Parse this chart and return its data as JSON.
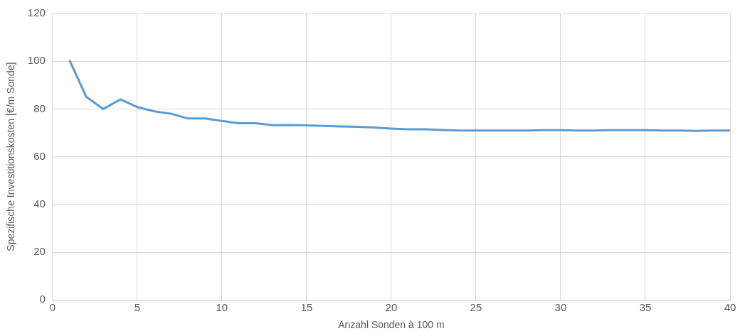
{
  "chart_data": {
    "type": "line",
    "xlabel": "Anzahl Sonden à 100 m",
    "ylabel": "Spezifische Investitionskosten [€/m Sonde]",
    "x": [
      1,
      2,
      3,
      4,
      5,
      6,
      7,
      8,
      9,
      10,
      11,
      12,
      13,
      14,
      15,
      16,
      17,
      18,
      19,
      20,
      21,
      22,
      23,
      24,
      25,
      26,
      27,
      28,
      29,
      30,
      31,
      32,
      33,
      34,
      35,
      36,
      37,
      38,
      39,
      40
    ],
    "series": [
      {
        "color": "#5b9bd5",
        "values": [
          100.5,
          85,
          80,
          84,
          80.8,
          79,
          78,
          76,
          76,
          75,
          74,
          74,
          73.2,
          73.3,
          73.1,
          72.9,
          72.7,
          72.5,
          72.2,
          71.8,
          71.5,
          71.5,
          71.2,
          71,
          71,
          71,
          71,
          71,
          71.1,
          71.1,
          71,
          71,
          71.1,
          71.1,
          71.1,
          71,
          71,
          70.8,
          71,
          71
        ]
      }
    ],
    "xlim": [
      0,
      40
    ],
    "xticks": [
      0,
      5,
      10,
      15,
      20,
      25,
      30,
      35,
      40
    ],
    "ylim": [
      0,
      120
    ],
    "yticks": [
      0,
      20,
      40,
      60,
      80,
      100,
      120
    ],
    "grid": true,
    "legend": false,
    "marker": "none",
    "line_style": "solid"
  }
}
